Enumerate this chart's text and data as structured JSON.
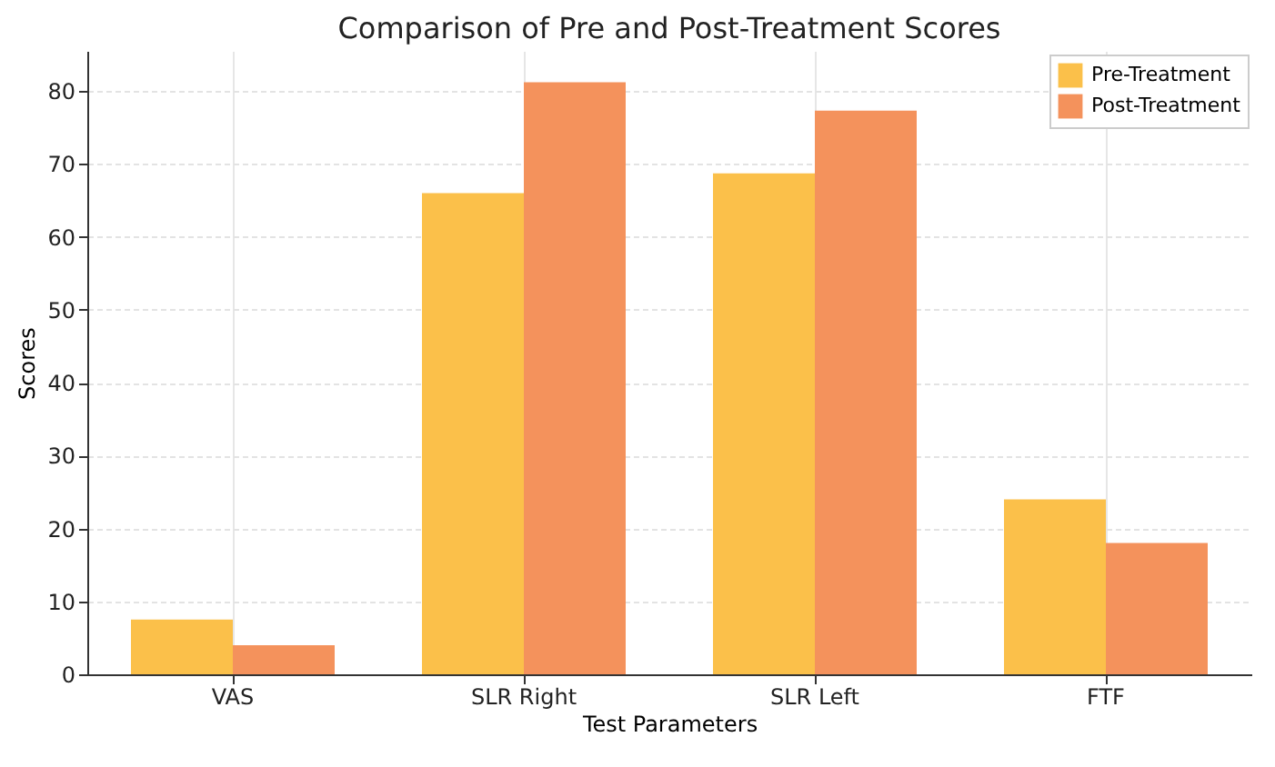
{
  "chart_data": {
    "type": "bar",
    "title": "Comparison of Pre and Post-Treatment Scores",
    "xlabel": "Test Parameters",
    "ylabel": "Scores",
    "categories": [
      "VAS",
      "SLR Right",
      "SLR Left",
      "FTF"
    ],
    "series": [
      {
        "name": "Pre-Treatment",
        "color": "#fbc04a",
        "values": [
          7.5,
          66,
          68.7,
          24
        ]
      },
      {
        "name": "Post-Treatment",
        "color": "#f4925c",
        "values": [
          4,
          81.2,
          77.3,
          18
        ]
      }
    ],
    "ylim": [
      0,
      85.5
    ],
    "yticks": [
      0,
      10,
      20,
      30,
      40,
      50,
      60,
      70,
      80
    ],
    "grid": true,
    "legend": "top right"
  }
}
